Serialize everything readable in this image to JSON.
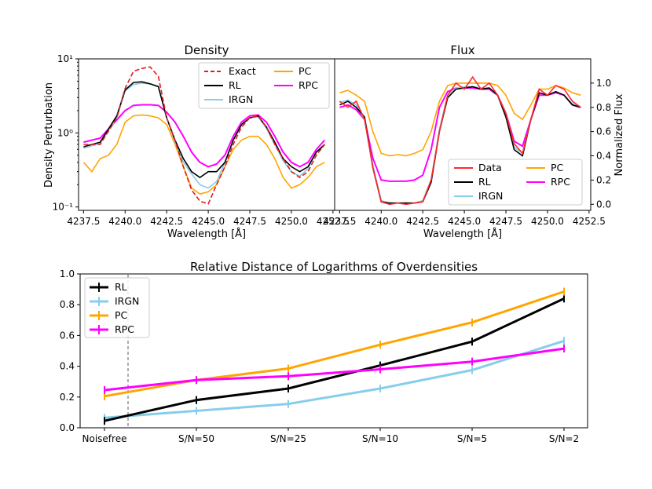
{
  "colors": {
    "exact": "#e41a1c",
    "data": "#ff2a2a",
    "rl": "#000000",
    "irgn": "#87ceeb",
    "pc": "#ffa500",
    "rpc": "#ff00ff"
  },
  "chart_data": [
    {
      "type": "line",
      "title": "Density",
      "xlabel": "Wavelength [Å]",
      "ylabel": "Density Perturbation",
      "yscale": "log",
      "xlim": [
        4237.2,
        4252.6
      ],
      "ylim": [
        0.09,
        10
      ],
      "xticks": [
        "4237.5",
        "4240.0",
        "4242.5",
        "4245.0",
        "4247.5",
        "4250.0",
        "4252.5"
      ],
      "yticks": [
        "10⁻¹",
        "10⁰",
        "10¹"
      ],
      "legend": {
        "position": "top-right",
        "entries": [
          "Exact",
          "RL",
          "IRGN",
          "PC",
          "RPC"
        ]
      },
      "series": [
        {
          "name": "Exact",
          "x": [
            4237.5,
            4238.5,
            4239.5,
            4240.0,
            4240.5,
            4241.0,
            4241.5,
            4242.0,
            4242.5,
            4243.0,
            4243.5,
            4244.0,
            4244.5,
            4245.0,
            4245.5,
            4246.0,
            4246.5,
            4247.0,
            4247.5,
            4248.0,
            4248.5,
            4249.0,
            4249.5,
            4250.0,
            4250.5,
            4251.0,
            4251.5,
            4252.0
          ],
          "y": [
            0.7,
            0.7,
            1.6,
            4.0,
            6.8,
            7.4,
            7.8,
            5.8,
            1.6,
            0.8,
            0.35,
            0.17,
            0.12,
            0.11,
            0.2,
            0.35,
            0.7,
            1.2,
            1.6,
            1.7,
            1.2,
            0.7,
            0.45,
            0.3,
            0.25,
            0.3,
            0.5,
            0.7
          ]
        },
        {
          "name": "RL",
          "x": [
            4237.5,
            4238.5,
            4239.5,
            4240.0,
            4240.5,
            4241.0,
            4241.5,
            4242.0,
            4242.5,
            4243.0,
            4243.5,
            4244.0,
            4244.5,
            4245.0,
            4245.5,
            4246.0,
            4246.5,
            4247.0,
            4247.5,
            4248.0,
            4248.5,
            4249.0,
            4249.5,
            4250.0,
            4250.5,
            4251.0,
            4251.5,
            4252.0
          ],
          "y": [
            0.65,
            0.75,
            1.7,
            3.8,
            4.8,
            4.9,
            4.6,
            4.2,
            1.6,
            0.8,
            0.45,
            0.3,
            0.25,
            0.3,
            0.3,
            0.4,
            0.8,
            1.3,
            1.6,
            1.7,
            1.2,
            0.75,
            0.45,
            0.35,
            0.3,
            0.35,
            0.55,
            0.7
          ]
        },
        {
          "name": "IRGN",
          "x": [
            4237.5,
            4238.5,
            4239.5,
            4240.0,
            4240.5,
            4241.0,
            4241.5,
            4242.0,
            4242.5,
            4243.0,
            4243.5,
            4244.0,
            4244.5,
            4245.0,
            4245.5,
            4246.0,
            4246.5,
            4247.0,
            4247.5,
            4248.0,
            4248.5,
            4249.0,
            4249.5,
            4250.0,
            4250.5,
            4251.0,
            4251.5,
            4252.0
          ],
          "y": [
            0.62,
            0.72,
            1.6,
            3.7,
            4.5,
            4.7,
            4.6,
            4.3,
            1.6,
            0.75,
            0.4,
            0.28,
            0.2,
            0.18,
            0.22,
            0.4,
            0.8,
            1.3,
            1.6,
            1.65,
            1.15,
            0.7,
            0.42,
            0.3,
            0.26,
            0.33,
            0.55,
            0.68
          ]
        },
        {
          "name": "PC",
          "x": [
            4237.5,
            4238.0,
            4238.5,
            4239.0,
            4239.5,
            4240.0,
            4240.5,
            4241.0,
            4241.5,
            4242.0,
            4242.5,
            4243.0,
            4243.5,
            4244.0,
            4244.5,
            4245.0,
            4245.5,
            4246.0,
            4246.5,
            4247.0,
            4247.5,
            4248.0,
            4248.5,
            4249.0,
            4249.5,
            4250.0,
            4250.5,
            4251.0,
            4251.5,
            4252.0
          ],
          "y": [
            0.4,
            0.3,
            0.45,
            0.5,
            0.7,
            1.4,
            1.7,
            1.75,
            1.7,
            1.6,
            1.3,
            0.7,
            0.35,
            0.18,
            0.15,
            0.16,
            0.2,
            0.35,
            0.6,
            0.8,
            0.9,
            0.9,
            0.7,
            0.45,
            0.25,
            0.18,
            0.2,
            0.25,
            0.35,
            0.4
          ]
        },
        {
          "name": "RPC",
          "x": [
            4237.5,
            4238.5,
            4239.5,
            4240.0,
            4240.5,
            4241.0,
            4241.5,
            4242.0,
            4242.5,
            4243.0,
            4243.5,
            4244.0,
            4244.5,
            4245.0,
            4245.5,
            4246.0,
            4246.5,
            4247.0,
            4247.5,
            4248.0,
            4248.5,
            4249.0,
            4249.5,
            4250.0,
            4250.5,
            4251.0,
            4251.5,
            4252.0
          ],
          "y": [
            0.75,
            0.85,
            1.5,
            2.0,
            2.35,
            2.4,
            2.4,
            2.35,
            1.9,
            1.4,
            0.9,
            0.55,
            0.4,
            0.35,
            0.38,
            0.5,
            0.9,
            1.4,
            1.7,
            1.75,
            1.4,
            0.9,
            0.55,
            0.4,
            0.35,
            0.4,
            0.6,
            0.8
          ]
        }
      ]
    },
    {
      "type": "line",
      "title": "Flux",
      "xlabel": "Wavelength [Å]",
      "ylabel": "Normalized Flux",
      "xlim": [
        4237.2,
        4252.6
      ],
      "ylim": [
        -0.05,
        1.2
      ],
      "xticks": [
        "4237.5",
        "4240.0",
        "4242.5",
        "4245.0",
        "4247.5",
        "4250.0",
        "4252.5"
      ],
      "yticks": [
        "0.0",
        "0.2",
        "0.4",
        "0.6",
        "0.8",
        "1.0"
      ],
      "legend": {
        "position": "lower-right",
        "entries": [
          "Data",
          "RL",
          "IRGN",
          "PC",
          "RPC"
        ]
      },
      "series": [
        {
          "name": "Data",
          "x": [
            4237.5,
            4238.0,
            4238.5,
            4239.0,
            4239.5,
            4240.0,
            4240.5,
            4241.0,
            4241.5,
            4242.0,
            4242.5,
            4243.0,
            4243.5,
            4244.0,
            4244.5,
            4245.0,
            4245.5,
            4246.0,
            4246.5,
            4247.0,
            4247.5,
            4248.0,
            4248.5,
            4249.0,
            4249.5,
            4250.0,
            4250.5,
            4251.0,
            4251.5,
            4252.0
          ],
          "y": [
            0.85,
            0.8,
            0.85,
            0.7,
            0.3,
            0.02,
            0.0,
            0.01,
            0.0,
            0.01,
            0.02,
            0.2,
            0.6,
            0.9,
            1.0,
            0.95,
            1.05,
            0.95,
            1.0,
            0.9,
            0.75,
            0.5,
            0.42,
            0.7,
            0.95,
            0.9,
            0.98,
            0.95,
            0.85,
            0.8
          ]
        },
        {
          "name": "RL",
          "x": [
            4237.5,
            4238.0,
            4238.5,
            4239.0,
            4239.5,
            4240.0,
            4240.5,
            4241.0,
            4241.5,
            4242.0,
            4242.5,
            4243.0,
            4243.5,
            4244.0,
            4244.5,
            4245.0,
            4245.5,
            4246.0,
            4246.5,
            4247.0,
            4247.5,
            4248.0,
            4248.5,
            4249.0,
            4249.5,
            4250.0,
            4250.5,
            4251.0,
            4251.5,
            4252.0
          ],
          "y": [
            0.82,
            0.85,
            0.8,
            0.72,
            0.3,
            0.02,
            0.01,
            0.01,
            0.01,
            0.01,
            0.02,
            0.18,
            0.6,
            0.88,
            0.95,
            0.96,
            0.97,
            0.95,
            0.96,
            0.9,
            0.72,
            0.45,
            0.4,
            0.7,
            0.92,
            0.9,
            0.93,
            0.9,
            0.82,
            0.8
          ]
        },
        {
          "name": "IRGN",
          "x": [
            4237.5,
            4238.0,
            4238.5,
            4239.0,
            4239.5,
            4240.0,
            4240.5,
            4241.0,
            4241.5,
            4242.0,
            4242.5,
            4243.0,
            4243.5,
            4244.0,
            4244.5,
            4245.0,
            4245.5,
            4246.0,
            4246.5,
            4247.0,
            4247.5,
            4248.0,
            4248.5,
            4249.0,
            4249.5,
            4250.0,
            4250.5,
            4251.0,
            4251.5,
            4252.0
          ],
          "y": [
            0.84,
            0.86,
            0.82,
            0.7,
            0.32,
            0.03,
            0.01,
            0.01,
            0.01,
            0.01,
            0.03,
            0.2,
            0.62,
            0.9,
            0.96,
            0.97,
            0.97,
            0.96,
            0.96,
            0.9,
            0.73,
            0.47,
            0.42,
            0.7,
            0.92,
            0.9,
            0.93,
            0.9,
            0.83,
            0.8
          ]
        },
        {
          "name": "PC",
          "x": [
            4237.5,
            4238.0,
            4238.5,
            4239.0,
            4239.5,
            4240.0,
            4240.5,
            4241.0,
            4241.5,
            4242.0,
            4242.5,
            4243.0,
            4243.5,
            4244.0,
            4244.5,
            4245.0,
            4245.5,
            4246.0,
            4246.5,
            4247.0,
            4247.5,
            4248.0,
            4248.5,
            4249.0,
            4249.5,
            4250.0,
            4250.5,
            4251.0,
            4251.5,
            4252.0
          ],
          "y": [
            0.92,
            0.94,
            0.9,
            0.85,
            0.6,
            0.42,
            0.4,
            0.41,
            0.4,
            0.42,
            0.45,
            0.6,
            0.85,
            0.98,
            1.0,
            1.0,
            1.0,
            1.0,
            1.0,
            0.98,
            0.9,
            0.75,
            0.7,
            0.82,
            0.95,
            0.95,
            0.98,
            0.96,
            0.92,
            0.9
          ]
        },
        {
          "name": "RPC",
          "x": [
            4237.5,
            4238.0,
            4238.5,
            4239.0,
            4239.5,
            4240.0,
            4240.5,
            4241.0,
            4241.5,
            4242.0,
            4242.5,
            4243.0,
            4243.5,
            4244.0,
            4244.5,
            4245.0,
            4245.5,
            4246.0,
            4246.5,
            4247.0,
            4247.5,
            4248.0,
            4248.5,
            4249.0,
            4249.5,
            4250.0,
            4250.5,
            4251.0,
            4251.5,
            4252.0
          ],
          "y": [
            0.8,
            0.82,
            0.78,
            0.7,
            0.38,
            0.2,
            0.19,
            0.19,
            0.19,
            0.2,
            0.24,
            0.45,
            0.8,
            0.93,
            0.96,
            0.96,
            0.96,
            0.95,
            0.95,
            0.9,
            0.75,
            0.52,
            0.48,
            0.7,
            0.9,
            0.9,
            0.92,
            0.9,
            0.82,
            0.8
          ]
        }
      ]
    },
    {
      "type": "line",
      "title": "Relative Distance of Logarithms of Overdensities",
      "xlabel": "",
      "ylabel": "",
      "categories": [
        "Noisefree",
        "S/N=50",
        "S/N=25",
        "S/N=10",
        "S/N=5",
        "S/N=2"
      ],
      "ylim": [
        0.0,
        1.0
      ],
      "yticks": [
        "0.0",
        "0.2",
        "0.4",
        "0.6",
        "0.8",
        "1.0"
      ],
      "legend": {
        "position": "top-left",
        "entries": [
          "RL",
          "IRGN",
          "PC",
          "RPC"
        ]
      },
      "series": [
        {
          "name": "RL",
          "values": [
            0.045,
            0.18,
            0.255,
            0.405,
            0.56,
            0.84
          ]
        },
        {
          "name": "IRGN",
          "values": [
            0.065,
            0.11,
            0.155,
            0.255,
            0.375,
            0.565
          ]
        },
        {
          "name": "PC",
          "values": [
            0.205,
            0.31,
            0.385,
            0.54,
            0.685,
            0.885
          ]
        },
        {
          "name": "RPC",
          "values": [
            0.245,
            0.31,
            0.335,
            0.38,
            0.43,
            0.515
          ]
        }
      ]
    }
  ]
}
